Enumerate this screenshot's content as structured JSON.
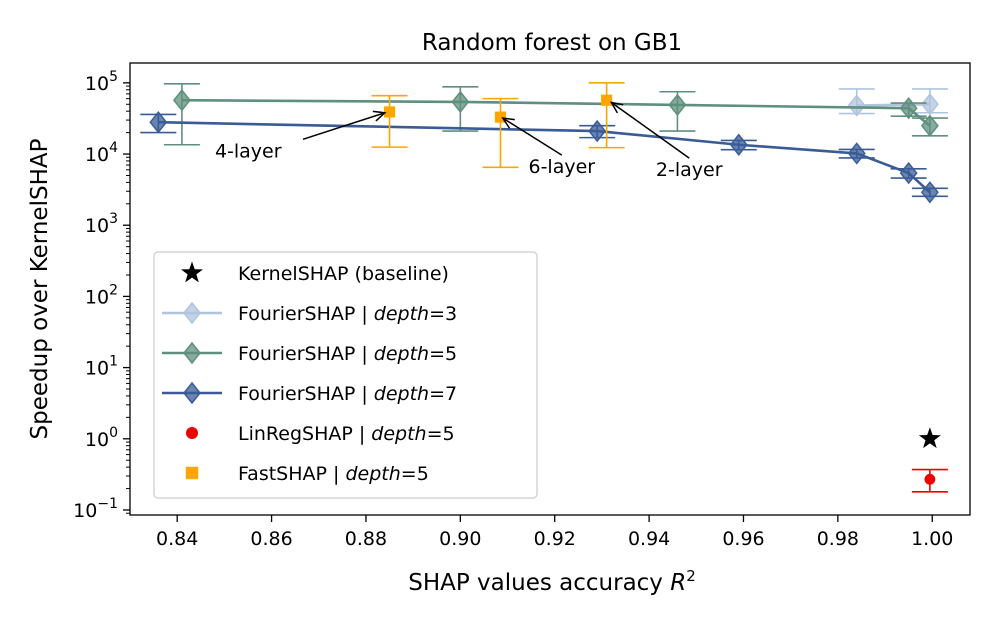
{
  "chart_data": {
    "type": "line",
    "title": "Random forest on GB1",
    "xlabel": "SHAP values accuracy",
    "xlabel_symbol": "R",
    "xlabel_exponent": "2",
    "ylabel": "Speedup over KernelSHAP",
    "xscale": "linear",
    "yscale": "log",
    "xlim": [
      0.83,
      1.008
    ],
    "ylim": [
      0.085,
      190000
    ],
    "x_ticks": [
      0.84,
      0.86,
      0.88,
      0.9,
      0.92,
      0.94,
      0.96,
      0.98,
      1.0
    ],
    "x_tick_labels": [
      "0.84",
      "0.86",
      "0.88",
      "0.90",
      "0.92",
      "0.94",
      "0.96",
      "0.98",
      "1.00"
    ],
    "y_ticks": [
      0.1,
      1,
      10,
      100,
      1000,
      10000,
      100000
    ],
    "y_tick_base": "10",
    "y_tick_exponents": [
      "−1",
      "0",
      "1",
      "2",
      "3",
      "4",
      "5"
    ],
    "legend_position": "lower-left",
    "legend": [
      {
        "key": "kernel",
        "prefix": "KernelSHAP (baseline)",
        "italic": "",
        "suffix": ""
      },
      {
        "key": "d3",
        "prefix": "FourierSHAP | ",
        "italic": "depth",
        "suffix": "=3"
      },
      {
        "key": "d5",
        "prefix": "FourierSHAP | ",
        "italic": "depth",
        "suffix": "=5"
      },
      {
        "key": "d7",
        "prefix": "FourierSHAP | ",
        "italic": "depth",
        "suffix": "=7"
      },
      {
        "key": "linreg",
        "prefix": "LinRegSHAP | ",
        "italic": "depth",
        "suffix": "=5"
      },
      {
        "key": "fast",
        "prefix": "FastSHAP | ",
        "italic": "depth",
        "suffix": "=5"
      }
    ],
    "series": [
      {
        "key": "d3",
        "name": "FourierSHAP | depth=3",
        "color": "#b0c4de",
        "marker": "diamond",
        "connected": true,
        "points": [
          {
            "x": 0.984,
            "y": 48000,
            "ylow": 37000,
            "yhigh": 82000
          },
          {
            "x": 0.9995,
            "y": 50000,
            "ylow": 38000,
            "yhigh": 82000
          }
        ]
      },
      {
        "key": "d5",
        "name": "FourierSHAP | depth=5",
        "color": "#5f8f7d",
        "marker": "diamond",
        "connected": true,
        "points": [
          {
            "x": 0.841,
            "y": 57000,
            "ylow": 13500,
            "yhigh": 97000
          },
          {
            "x": 0.9,
            "y": 54000,
            "ylow": 21000,
            "yhigh": 88000
          },
          {
            "x": 0.946,
            "y": 49000,
            "ylow": 21000,
            "yhigh": 75000
          },
          {
            "x": 0.995,
            "y": 44000,
            "ylow": 34000,
            "yhigh": 52000
          },
          {
            "x": 0.9995,
            "y": 25000,
            "ylow": 18000,
            "yhigh": 32000
          }
        ]
      },
      {
        "key": "d7",
        "name": "FourierSHAP | depth=7",
        "color": "#3a5b96",
        "marker": "diamond",
        "connected": true,
        "points": [
          {
            "x": 0.836,
            "y": 28000,
            "ylow": 20000,
            "yhigh": 36000
          },
          {
            "x": 0.929,
            "y": 21000,
            "ylow": 17000,
            "yhigh": 25000
          },
          {
            "x": 0.959,
            "y": 13500,
            "ylow": 11500,
            "yhigh": 15500
          },
          {
            "x": 0.984,
            "y": 10200,
            "ylow": 8800,
            "yhigh": 11600
          },
          {
            "x": 0.995,
            "y": 5400,
            "ylow": 4600,
            "yhigh": 6200
          },
          {
            "x": 0.9995,
            "y": 2900,
            "ylow": 2550,
            "yhigh": 3300
          }
        ]
      },
      {
        "key": "linreg",
        "name": "LinRegSHAP | depth=5",
        "color": "#ee0000",
        "marker": "circle",
        "connected": false,
        "points": [
          {
            "x": 0.9995,
            "y": 0.27,
            "ylow": 0.18,
            "yhigh": 0.37
          }
        ]
      },
      {
        "key": "fast",
        "name": "FastSHAP | depth=5",
        "color": "#ffa500",
        "marker": "square",
        "connected": false,
        "points": [
          {
            "x": 0.885,
            "y": 39000,
            "ylow": 12500,
            "yhigh": 66000
          },
          {
            "x": 0.9085,
            "y": 33000,
            "ylow": 6500,
            "yhigh": 60000
          },
          {
            "x": 0.931,
            "y": 57000,
            "ylow": 12300,
            "yhigh": 100000
          }
        ]
      },
      {
        "key": "kernel",
        "name": "KernelSHAP (baseline)",
        "color": "#000000",
        "marker": "star",
        "connected": false,
        "points": [
          {
            "x": 0.9995,
            "y": 1.0
          }
        ]
      }
    ],
    "annotations": [
      {
        "text": "4-layer",
        "x": 0.848,
        "y": 9000,
        "target_x": 0.884,
        "target_y": 38000,
        "anchor": "start"
      },
      {
        "text": "6-layer",
        "x": 0.9215,
        "y": 5400,
        "target_x": 0.909,
        "target_y": 32000,
        "anchor": "middle"
      },
      {
        "text": "2-layer",
        "x": 0.9485,
        "y": 4900,
        "target_x": 0.932,
        "target_y": 53000,
        "anchor": "middle"
      }
    ]
  }
}
